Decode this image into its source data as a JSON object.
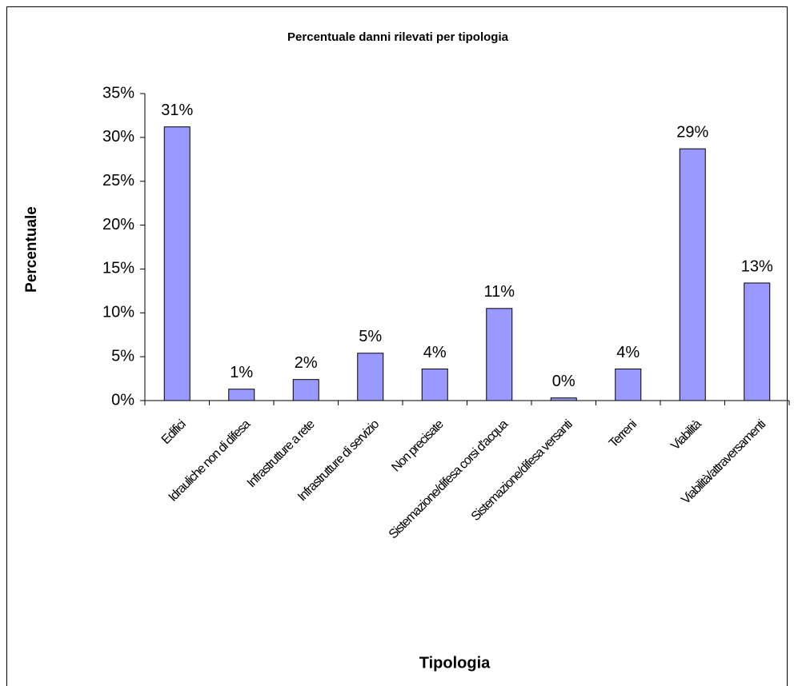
{
  "chart_data": {
    "type": "bar",
    "title": "Percentuale danni rilevati per tipologia",
    "x_label": "Tipologia",
    "y_label": "Percentuale",
    "categories": [
      "Edifici",
      "Idrauliche non di difesa",
      "Infrastrutture a rete",
      "Infrastrutture di servizio",
      "Non precisate",
      "Sistemazione/difesa corsi d'acqua",
      "Sistemazione/difesa versanti",
      "Terreni",
      "Viabilità",
      "Viabilità/attraversamenti"
    ],
    "values": [
      31.2,
      1.3,
      2.4,
      5.4,
      3.6,
      10.5,
      0.3,
      3.6,
      28.7,
      13.4
    ],
    "value_labels": [
      "31%",
      "1%",
      "2%",
      "5%",
      "4%",
      "11%",
      "0%",
      "4%",
      "29%",
      "13%"
    ],
    "color": "#9999ff",
    "ylim": [
      0,
      35
    ],
    "yticks": [
      {
        "value": 0,
        "label": "0%"
      },
      {
        "value": 5,
        "label": "5%"
      },
      {
        "value": 10,
        "label": "10%"
      },
      {
        "value": 15,
        "label": "15%"
      },
      {
        "value": 20,
        "label": "20%"
      },
      {
        "value": 25,
        "label": "25%"
      },
      {
        "value": 30,
        "label": "30%"
      },
      {
        "value": 35,
        "label": "35%"
      }
    ],
    "grid": false
  }
}
